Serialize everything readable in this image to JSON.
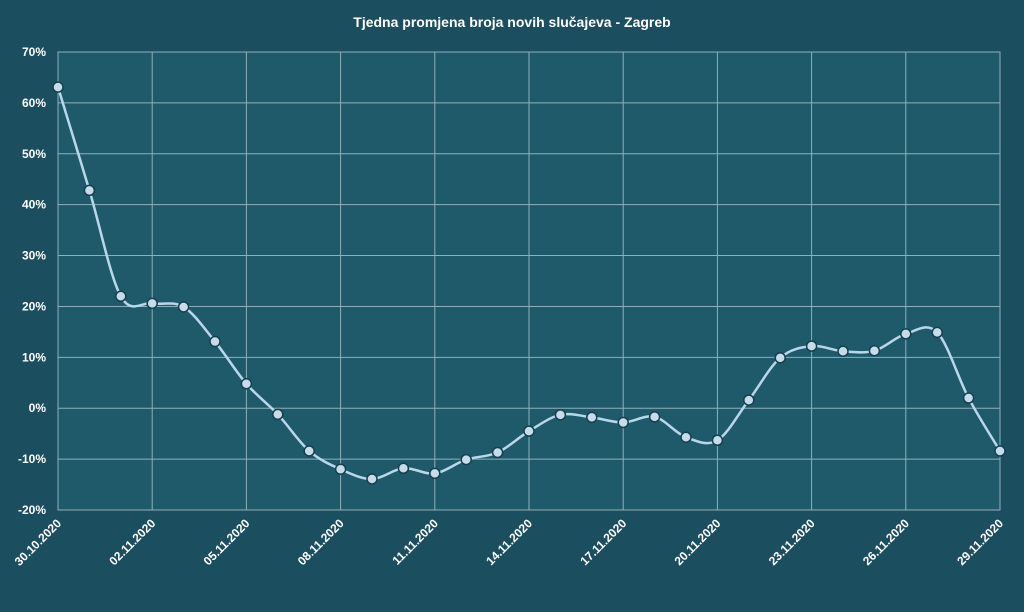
{
  "chart_data": {
    "type": "line",
    "title": "Tjedna promjena broja novih slučajeva - Zagreb",
    "xlabel": "",
    "ylabel": "",
    "ylim": [
      -20,
      70
    ],
    "ytick_values": [
      -20,
      -10,
      0,
      10,
      20,
      30,
      40,
      50,
      60,
      70
    ],
    "ytick_labels": [
      "-20%",
      "-10%",
      "0%",
      "10%",
      "20%",
      "30%",
      "40%",
      "50%",
      "60%",
      "70%"
    ],
    "xtick_labels": [
      "30.10.2020",
      "02.11.2020",
      "05.11.2020",
      "08.11.2020",
      "11.11.2020",
      "14.11.2020",
      "17.11.2020",
      "20.11.2020",
      "23.11.2020",
      "26.11.2020",
      "29.11.2020"
    ],
    "x": [
      "30.10.2020",
      "31.10.2020",
      "01.11.2020",
      "02.11.2020",
      "03.11.2020",
      "04.11.2020",
      "05.11.2020",
      "06.11.2020",
      "07.11.2020",
      "08.11.2020",
      "09.11.2020",
      "10.11.2020",
      "11.11.2020",
      "12.11.2020",
      "13.11.2020",
      "14.11.2020",
      "15.11.2020",
      "16.11.2020",
      "17.11.2020",
      "18.11.2020",
      "19.11.2020",
      "20.11.2020",
      "21.11.2020",
      "22.11.2020",
      "23.11.2020",
      "24.11.2020",
      "25.11.2020",
      "26.11.2020",
      "27.11.2020",
      "28.11.2020",
      "29.11.2020"
    ],
    "series": [
      {
        "values": [
          63.1,
          42.8,
          22.0,
          20.6,
          19.9,
          13.1,
          4.8,
          -1.2,
          -8.4,
          -12.0,
          -13.9,
          -11.8,
          -12.8,
          -10.1,
          -8.7,
          -4.5,
          -1.3,
          -1.8,
          -2.8,
          -1.7,
          -5.7,
          -6.3,
          1.6,
          9.9,
          12.2,
          11.2,
          11.3,
          14.6,
          14.9,
          2.0,
          -8.4
        ]
      }
    ],
    "grid": true,
    "legend": "none",
    "colors": {
      "background": "#1b4e5f",
      "plot_area": "#1f5a6b",
      "grid": "#8fb0bb",
      "line": "#b9d7ea",
      "marker_fill": "#c6dcec",
      "marker_stroke": "#16404e",
      "text": "#ffffff"
    }
  }
}
